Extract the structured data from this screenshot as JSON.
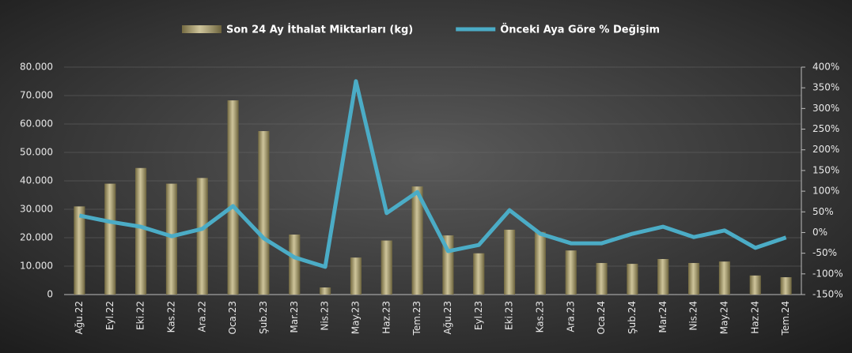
{
  "chart_data": {
    "type": "bar_line",
    "categories": [
      "Ağu.22",
      "Eyl.22",
      "Eki.22",
      "Kas.22",
      "Ara.22",
      "Oca.23",
      "Şub.23",
      "Mar.23",
      "Nis.23",
      "May.23",
      "Haz.23",
      "Tem.23",
      "Ağu.23",
      "Eyl.23",
      "Eki.23",
      "Kas.23",
      "Ara.23",
      "Oca.24",
      "Şub.24",
      "Mar.24",
      "Nis.24",
      "May.24",
      "Haz.24",
      "Tem.24"
    ],
    "series": [
      {
        "name": "Son 24 Ay İthalat Miktarları (kg)",
        "type": "bar",
        "color": "#b3a464",
        "values": [
          31000,
          39000,
          44500,
          39000,
          41000,
          68300,
          57500,
          21100,
          2500,
          13000,
          19000,
          38000,
          20800,
          14500,
          22800,
          22000,
          15500,
          11100,
          10800,
          12500,
          11100,
          11600,
          6700,
          6100
        ]
      },
      {
        "name": "Önceki Aya Göre % Değişim",
        "type": "line",
        "axis": "y2",
        "color": "#4bacc6",
        "values": [
          41,
          26,
          14,
          -9,
          9,
          64,
          -14,
          -60,
          -83,
          366,
          47,
          98,
          -45,
          -30,
          54,
          -3,
          -26,
          -26,
          -3,
          14,
          -11,
          5,
          -37,
          -12
        ]
      }
    ],
    "ylim": [
      0,
      80000
    ],
    "yticks": [
      0,
      {
        "value": 10000,
        "label": "10.000"
      },
      {
        "value": 20000,
        "label": "20.000"
      },
      {
        "value": 30000,
        "label": "30.000"
      },
      {
        "value": 40000,
        "label": "40.000"
      },
      {
        "value": 50000,
        "label": "50.000"
      },
      {
        "value": 60000,
        "label": "60.000"
      },
      {
        "value": 70000,
        "label": "70.000"
      },
      {
        "value": 80000,
        "label": "80.000"
      }
    ],
    "y2lim": [
      -150,
      400
    ],
    "y2ticks": [
      {
        "value": -150,
        "label": "-150%"
      },
      {
        "value": -100,
        "label": "-100%"
      },
      {
        "value": -50,
        "label": "-50%"
      },
      {
        "value": 0,
        "label": "0%"
      },
      {
        "value": 50,
        "label": "50%"
      },
      {
        "value": 100,
        "label": "100%"
      },
      {
        "value": 150,
        "label": "150%"
      },
      {
        "value": 200,
        "label": "200%"
      },
      {
        "value": 250,
        "label": "250%"
      },
      {
        "value": 300,
        "label": "300%"
      },
      {
        "value": 350,
        "label": "350%"
      },
      {
        "value": 400,
        "label": "400%"
      }
    ],
    "grid": true,
    "legend": "top"
  }
}
